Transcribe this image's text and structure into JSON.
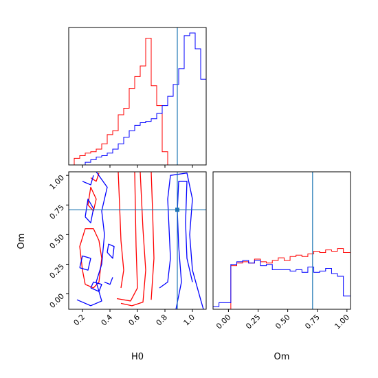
{
  "colors": {
    "series_a": "#ff0000",
    "series_b": "#0000ff",
    "truth": "#1f77b4"
  },
  "chart_data": {
    "type": "corner",
    "parameters": [
      "H0",
      "Om"
    ],
    "truths": {
      "H0": 0.89,
      "Om": 0.71
    },
    "panels": [
      {
        "id": "h0-hist",
        "type": "histogram",
        "xlim": [
          0.1,
          1.1
        ],
        "bin_edges": [
          0.1,
          0.14,
          0.18,
          0.22,
          0.26,
          0.3,
          0.34,
          0.38,
          0.42,
          0.46,
          0.5,
          0.54,
          0.58,
          0.62,
          0.66,
          0.7,
          0.74,
          0.78,
          0.82,
          0.86,
          0.9,
          0.94,
          0.98,
          1.02,
          1.06,
          1.1
        ],
        "series": [
          {
            "color": "red",
            "counts": [
              0.0,
              0.05,
              0.07,
              0.09,
              0.1,
              0.12,
              0.16,
              0.23,
              0.26,
              0.38,
              0.43,
              0.58,
              0.67,
              0.75,
              0.96,
              0.6,
              0.45,
              0.1,
              0.0,
              0.0,
              0.0,
              0.0,
              0.0,
              0.0,
              0.0
            ]
          },
          {
            "color": "blue",
            "counts": [
              0.0,
              0.0,
              0.0,
              0.02,
              0.04,
              0.06,
              0.07,
              0.09,
              0.12,
              0.16,
              0.21,
              0.26,
              0.3,
              0.32,
              0.33,
              0.35,
              0.39,
              0.45,
              0.52,
              0.61,
              0.73,
              0.98,
              1.0,
              0.88,
              0.65
            ]
          }
        ],
        "truth_x": 0.89
      },
      {
        "id": "om-hist",
        "type": "histogram",
        "xlim": [
          -0.13,
          1.03
        ],
        "bin_edges": [
          -0.13,
          -0.08,
          -0.03,
          0.02,
          0.07,
          0.12,
          0.17,
          0.22,
          0.27,
          0.32,
          0.37,
          0.42,
          0.47,
          0.52,
          0.57,
          0.62,
          0.67,
          0.72,
          0.77,
          0.82,
          0.87,
          0.92,
          0.97,
          1.03
        ],
        "series": [
          {
            "color": "red",
            "counts": [
              0.0,
              0.0,
              0.0,
              0.33,
              0.35,
              0.36,
              0.35,
              0.38,
              0.36,
              0.35,
              0.37,
              0.39,
              0.37,
              0.4,
              0.41,
              0.4,
              0.42,
              0.44,
              0.43,
              0.45,
              0.44,
              0.46,
              0.43
            ]
          },
          {
            "color": "blue",
            "counts": [
              0.02,
              0.05,
              0.05,
              0.34,
              0.36,
              0.37,
              0.35,
              0.37,
              0.33,
              0.34,
              0.3,
              0.3,
              0.3,
              0.29,
              0.3,
              0.28,
              0.32,
              0.28,
              0.29,
              0.31,
              0.27,
              0.25,
              0.1
            ]
          }
        ],
        "truth_x": 0.71
      },
      {
        "id": "h0-om-contour",
        "type": "contour",
        "xlabel": "H0",
        "ylabel": "Om",
        "xlim": [
          0.1,
          1.1
        ],
        "ylim": [
          -0.13,
          1.03
        ],
        "xticks": [
          0.2,
          0.4,
          0.6,
          0.8,
          1.0
        ],
        "yticks": [
          0.0,
          0.25,
          0.5,
          0.75,
          1.0
        ],
        "xtick_labels": [
          "0.2",
          "0.4",
          "0.6",
          "0.8",
          "1.0"
        ],
        "ytick_labels": [
          "0.00",
          "0.25",
          "0.50",
          "0.75",
          "1.00"
        ],
        "truth_point": [
          0.89,
          0.71
        ],
        "contours": [
          {
            "color": "red",
            "points": [
              [
                0.48,
                -0.08
              ],
              [
                0.56,
                -0.1
              ],
              [
                0.64,
                -0.07
              ],
              [
                0.66,
                0.2
              ],
              [
                0.64,
                0.55
              ],
              [
                0.62,
                1.03
              ]
            ]
          },
          {
            "color": "red",
            "points": [
              [
                0.45,
                -0.04
              ],
              [
                0.55,
                -0.06
              ],
              [
                0.6,
                0.05
              ],
              [
                0.59,
                0.4
              ],
              [
                0.58,
                1.03
              ]
            ]
          },
          {
            "color": "red",
            "points": [
              [
                0.7,
                1.03
              ],
              [
                0.71,
                0.7
              ],
              [
                0.72,
                0.3
              ],
              [
                0.7,
                -0.05
              ]
            ]
          },
          {
            "color": "red",
            "points": [
              [
                0.46,
                1.03
              ],
              [
                0.47,
                0.75
              ],
              [
                0.48,
                0.45
              ],
              [
                0.5,
                0.2
              ],
              [
                0.48,
                0.05
              ]
            ]
          },
          {
            "color": "red",
            "points": [
              [
                0.22,
                0.08
              ],
              [
                0.28,
                0.05
              ],
              [
                0.32,
                0.1
              ],
              [
                0.34,
                0.3
              ],
              [
                0.32,
                0.45
              ],
              [
                0.28,
                0.55
              ],
              [
                0.22,
                0.55
              ],
              [
                0.18,
                0.4
              ],
              [
                0.2,
                0.2
              ],
              [
                0.22,
                0.08
              ]
            ]
          },
          {
            "color": "red",
            "points": [
              [
                0.24,
                0.75
              ],
              [
                0.28,
                0.7
              ],
              [
                0.3,
                0.8
              ],
              [
                0.26,
                0.9
              ],
              [
                0.24,
                0.75
              ]
            ]
          },
          {
            "color": "red",
            "points": [
              [
                0.26,
                0.98
              ],
              [
                0.3,
                0.95
              ],
              [
                0.32,
                1.02
              ]
            ]
          },
          {
            "color": "blue",
            "points": [
              [
                0.76,
                0.05
              ],
              [
                0.82,
                0.1
              ],
              [
                0.84,
                0.3
              ],
              [
                0.83,
                0.55
              ],
              [
                0.82,
                0.8
              ],
              [
                0.84,
                1.0
              ],
              [
                0.96,
                1.02
              ],
              [
                1.0,
                0.8
              ],
              [
                0.98,
                0.5
              ],
              [
                1.0,
                0.2
              ],
              [
                1.06,
                -0.05
              ],
              [
                1.08,
                -0.13
              ]
            ]
          },
          {
            "color": "blue",
            "points": [
              [
                0.88,
                -0.13
              ],
              [
                0.92,
                0.1
              ],
              [
                0.9,
                0.4
              ],
              [
                0.89,
                0.7
              ],
              [
                0.9,
                0.95
              ],
              [
                0.96,
                0.95
              ],
              [
                0.95,
                0.6
              ],
              [
                0.96,
                0.3
              ],
              [
                1.0,
                0.1
              ]
            ]
          },
          {
            "color": "blue",
            "points": [
              [
                0.16,
                -0.05
              ],
              [
                0.26,
                -0.1
              ],
              [
                0.34,
                -0.06
              ],
              [
                0.3,
                0.1
              ],
              [
                0.34,
                0.25
              ],
              [
                0.36,
                0.5
              ],
              [
                0.34,
                0.7
              ],
              [
                0.38,
                0.9
              ],
              [
                0.3,
                1.03
              ]
            ]
          },
          {
            "color": "blue",
            "points": [
              [
                0.22,
                0.65
              ],
              [
                0.26,
                0.6
              ],
              [
                0.28,
                0.72
              ],
              [
                0.24,
                0.8
              ],
              [
                0.22,
                0.65
              ]
            ]
          },
          {
            "color": "blue",
            "points": [
              [
                0.2,
                0.95
              ],
              [
                0.26,
                0.92
              ],
              [
                0.28,
                1.0
              ]
            ]
          },
          {
            "color": "blue",
            "points": [
              [
                0.18,
                0.22
              ],
              [
                0.24,
                0.2
              ],
              [
                0.26,
                0.3
              ],
              [
                0.2,
                0.32
              ],
              [
                0.18,
                0.22
              ]
            ]
          },
          {
            "color": "blue",
            "points": [
              [
                0.38,
                0.35
              ],
              [
                0.42,
                0.3
              ],
              [
                0.43,
                0.4
              ],
              [
                0.39,
                0.42
              ],
              [
                0.38,
                0.35
              ]
            ]
          },
          {
            "color": "blue",
            "points": [
              [
                0.26,
                0.05
              ],
              [
                0.32,
                0.02
              ],
              [
                0.34,
                0.08
              ],
              [
                0.28,
                0.1
              ],
              [
                0.26,
                0.05
              ]
            ]
          },
          {
            "color": "blue",
            "points": [
              [
                0.36,
                0.1
              ],
              [
                0.4,
                0.08
              ],
              [
                0.42,
                0.14
              ]
            ]
          }
        ]
      }
    ]
  }
}
